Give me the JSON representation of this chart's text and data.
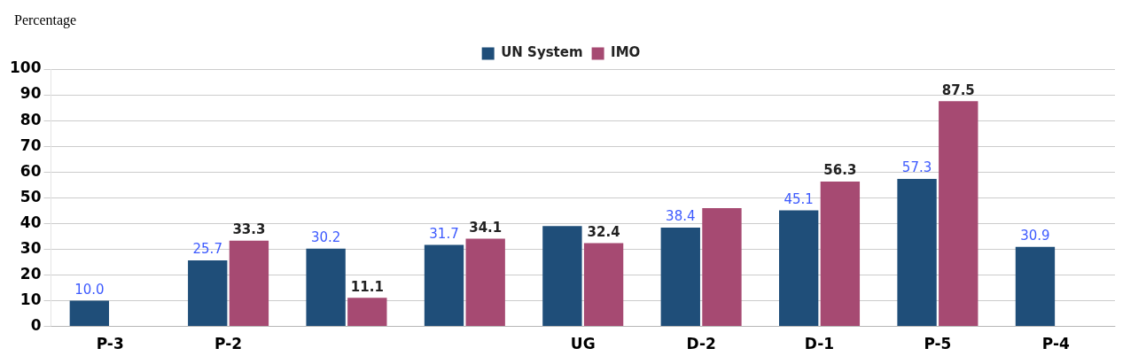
{
  "chart_data": {
    "type": "bar",
    "ylabel": "Percentage",
    "categories": [
      "P-3",
      "P-2",
      null,
      null,
      "UG",
      "D-2",
      "D-1",
      "P-5",
      "P-4"
    ],
    "series": [
      {
        "name": "UN System",
        "color": "#1f4e79",
        "values": [
          10.0,
          25.7,
          30.2,
          31.7,
          39,
          38.4,
          45.1,
          57.3,
          30.9
        ],
        "value_labels": [
          "10.0",
          "25.7",
          "30.2",
          "31.7",
          null,
          "38.4",
          "45.1",
          "57.3",
          "30.9"
        ]
      },
      {
        "name": "IMO",
        "color": "#a64a72",
        "values": [
          null,
          33.3,
          11.1,
          34.1,
          32.4,
          46,
          56.3,
          87.5,
          null
        ],
        "value_labels": [
          null,
          "33.3",
          "11.1",
          "34.1",
          "32.4",
          null,
          "56.3",
          "87.5",
          null
        ]
      }
    ],
    "ylim": [
      0,
      100
    ],
    "yticks": [
      0,
      10,
      20,
      30,
      40,
      50,
      60,
      70,
      80,
      90,
      100
    ],
    "grid": "y",
    "legend": "top"
  }
}
